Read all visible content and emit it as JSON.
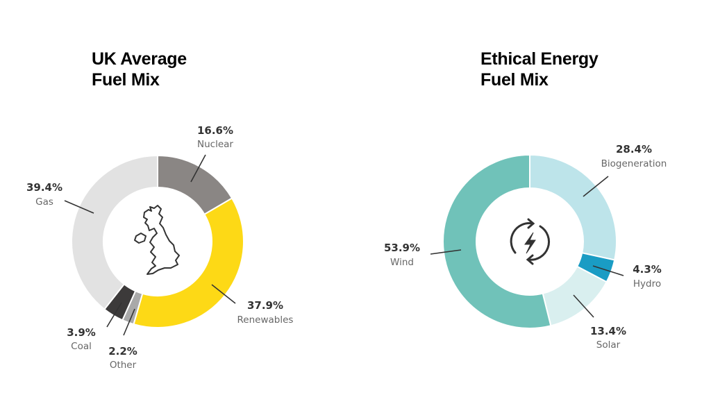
{
  "charts": {
    "uk": {
      "title_line1": "UK Average",
      "title_line2": "Fuel Mix",
      "center_icon": "uk-map-icon",
      "segments": [
        {
          "name": "Nuclear",
          "value": 16.6,
          "value_label": "16.6%",
          "color": "#8a8684"
        },
        {
          "name": "Renewables",
          "value": 37.9,
          "value_label": "37.9%",
          "color": "#fdd916"
        },
        {
          "name": "Other",
          "value": 2.2,
          "value_label": "2.2%",
          "color": "#a9a9a9"
        },
        {
          "name": "Coal",
          "value": 3.9,
          "value_label": "3.9%",
          "color": "#3c3a3a"
        },
        {
          "name": "Gas",
          "value": 39.4,
          "value_label": "39.4%",
          "color": "#e2e2e2"
        }
      ]
    },
    "ethical": {
      "title_line1": "Ethical Energy",
      "title_line2": "Fuel Mix",
      "center_icon": "renewable-energy-cycle-icon",
      "segments": [
        {
          "name": "Biogeneration",
          "value": 28.4,
          "value_label": "28.4%",
          "color": "#bde4ea"
        },
        {
          "name": "Hydro",
          "value": 4.3,
          "value_label": "4.3%",
          "color": "#1a9cc4"
        },
        {
          "name": "Solar",
          "value": 13.4,
          "value_label": "13.4%",
          "color": "#d9efef"
        },
        {
          "name": "Wind",
          "value": 53.9,
          "value_label": "53.9%",
          "color": "#70c2b9"
        }
      ]
    }
  },
  "chart_data": [
    {
      "type": "pie",
      "variant": "donut",
      "title": "UK Average Fuel Mix",
      "categories": [
        "Nuclear",
        "Renewables",
        "Other",
        "Coal",
        "Gas"
      ],
      "values": [
        16.6,
        37.9,
        2.2,
        3.9,
        39.4
      ],
      "unit": "%",
      "colors": [
        "#8a8684",
        "#fdd916",
        "#a9a9a9",
        "#3c3a3a",
        "#e2e2e2"
      ],
      "legend": "callout labels"
    },
    {
      "type": "pie",
      "variant": "donut",
      "title": "Ethical Energy Fuel Mix",
      "categories": [
        "Biogeneration",
        "Hydro",
        "Solar",
        "Wind"
      ],
      "values": [
        28.4,
        4.3,
        13.4,
        53.9
      ],
      "unit": "%",
      "colors": [
        "#bde4ea",
        "#1a9cc4",
        "#d9efef",
        "#70c2b9"
      ],
      "legend": "callout labels"
    }
  ]
}
